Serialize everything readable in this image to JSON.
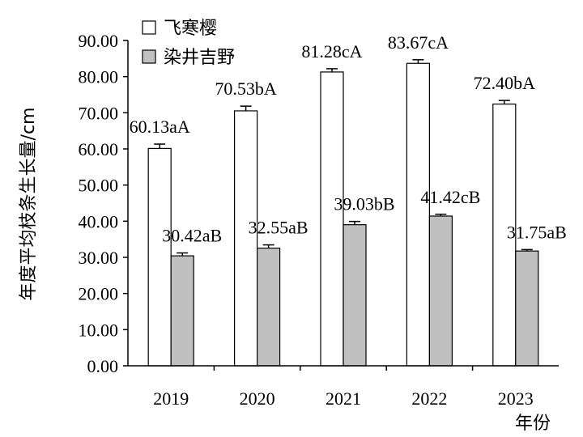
{
  "chart_data": {
    "type": "bar",
    "categories": [
      "2019",
      "2020",
      "2021",
      "2022",
      "2023"
    ],
    "series": [
      {
        "name": "飞寒樱",
        "values": [
          60.13,
          70.53,
          81.28,
          83.67,
          72.4
        ],
        "errors": [
          1.2,
          1.3,
          0.9,
          1.0,
          1.0
        ],
        "labels": [
          "60.13aA",
          "70.53bA",
          "81.28cA",
          "83.67cA",
          "72.40bA"
        ],
        "color": "#ffffff"
      },
      {
        "name": "染井吉野",
        "values": [
          30.42,
          32.55,
          39.03,
          41.42,
          31.75
        ],
        "errors": [
          0.8,
          0.9,
          0.9,
          0.5,
          0.4
        ],
        "labels": [
          "30.42aB",
          "32.55aB",
          "39.03bB",
          "41.42cB",
          "31.75aB"
        ],
        "color": "#c0c0c0"
      }
    ],
    "ylabel": "年度平均枝条生长量/cm",
    "xlabel": "年份",
    "ylim": [
      0,
      90
    ],
    "yticks": [
      "0.00",
      "10.00",
      "20.00",
      "30.00",
      "40.00",
      "50.00",
      "60.00",
      "70.00",
      "80.00",
      "90.00"
    ],
    "legend_position": "top-left",
    "grid": false
  }
}
